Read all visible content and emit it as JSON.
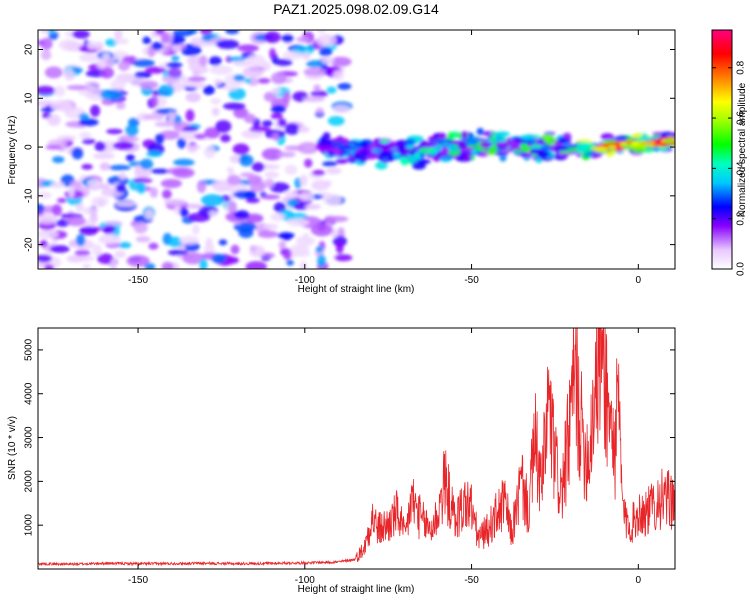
{
  "title": "PAZ1.2025.098.02.09.G14",
  "chart_data": [
    {
      "type": "heatmap",
      "xlabel": "Height of straight line (km)",
      "ylabel": "Frequency (Hz)",
      "xlim": [
        -180,
        11
      ],
      "ylim": [
        -25,
        24
      ],
      "xticks": [
        -150,
        -100,
        -50,
        0
      ],
      "yticks": [
        -20,
        -10,
        0,
        10,
        20
      ],
      "grid": false,
      "colorbar": {
        "label": "Normalized spectral amplitude",
        "range": [
          0,
          0.95
        ],
        "ticks": [
          0.0,
          0.2,
          0.4,
          0.6,
          0.8
        ]
      },
      "features": [
        {
          "description": "scattered noise region",
          "x": [
            -180,
            -88
          ],
          "y": [
            -25,
            24
          ],
          "amplitude": [
            0.05,
            0.35
          ]
        },
        {
          "description": "main signal trace",
          "x": [
            -95,
            11
          ],
          "y": [
            -4,
            3
          ],
          "amplitude_peak": 0.95,
          "peak_x": 0
        }
      ]
    },
    {
      "type": "line",
      "xlabel": "Height of straight line (km)",
      "ylabel": "SNR (10 * v/v)",
      "xlim": [
        -180,
        11
      ],
      "ylim": [
        0,
        5500
      ],
      "xticks": [
        -150,
        -100,
        -50,
        0
      ],
      "yticks": [
        1000,
        2000,
        3000,
        4000,
        5000
      ],
      "grid": false,
      "color": "#e8262a",
      "series": [
        {
          "x": [
            -180,
            -170,
            -160,
            -150,
            -140,
            -130,
            -120,
            -110,
            -100,
            -90,
            -85,
            -82,
            -80,
            -78,
            -75,
            -72,
            -70,
            -68,
            -65,
            -62,
            -60,
            -58,
            -55,
            -52,
            -50,
            -48,
            -45,
            -42,
            -40,
            -38,
            -35,
            -33,
            -31,
            -29,
            -27,
            -25,
            -23,
            -21,
            -19,
            -17,
            -15,
            -13,
            -11,
            -9,
            -7,
            -6,
            -5,
            -4,
            -2,
            0,
            3,
            6,
            9,
            11
          ],
          "y": [
            120,
            110,
            130,
            120,
            125,
            130,
            120,
            130,
            140,
            160,
            220,
            500,
            1200,
            900,
            1000,
            1300,
            700,
            1600,
            1100,
            900,
            1300,
            2000,
            1100,
            1500,
            1400,
            700,
            900,
            1300,
            1500,
            800,
            2000,
            1300,
            2900,
            1800,
            3800,
            2400,
            1700,
            2900,
            4500,
            3100,
            2500,
            4200,
            5300,
            3600,
            2700,
            3900,
            1800,
            1100,
            1000,
            1300,
            1300,
            1600,
            1550,
            1700
          ]
        }
      ]
    }
  ]
}
